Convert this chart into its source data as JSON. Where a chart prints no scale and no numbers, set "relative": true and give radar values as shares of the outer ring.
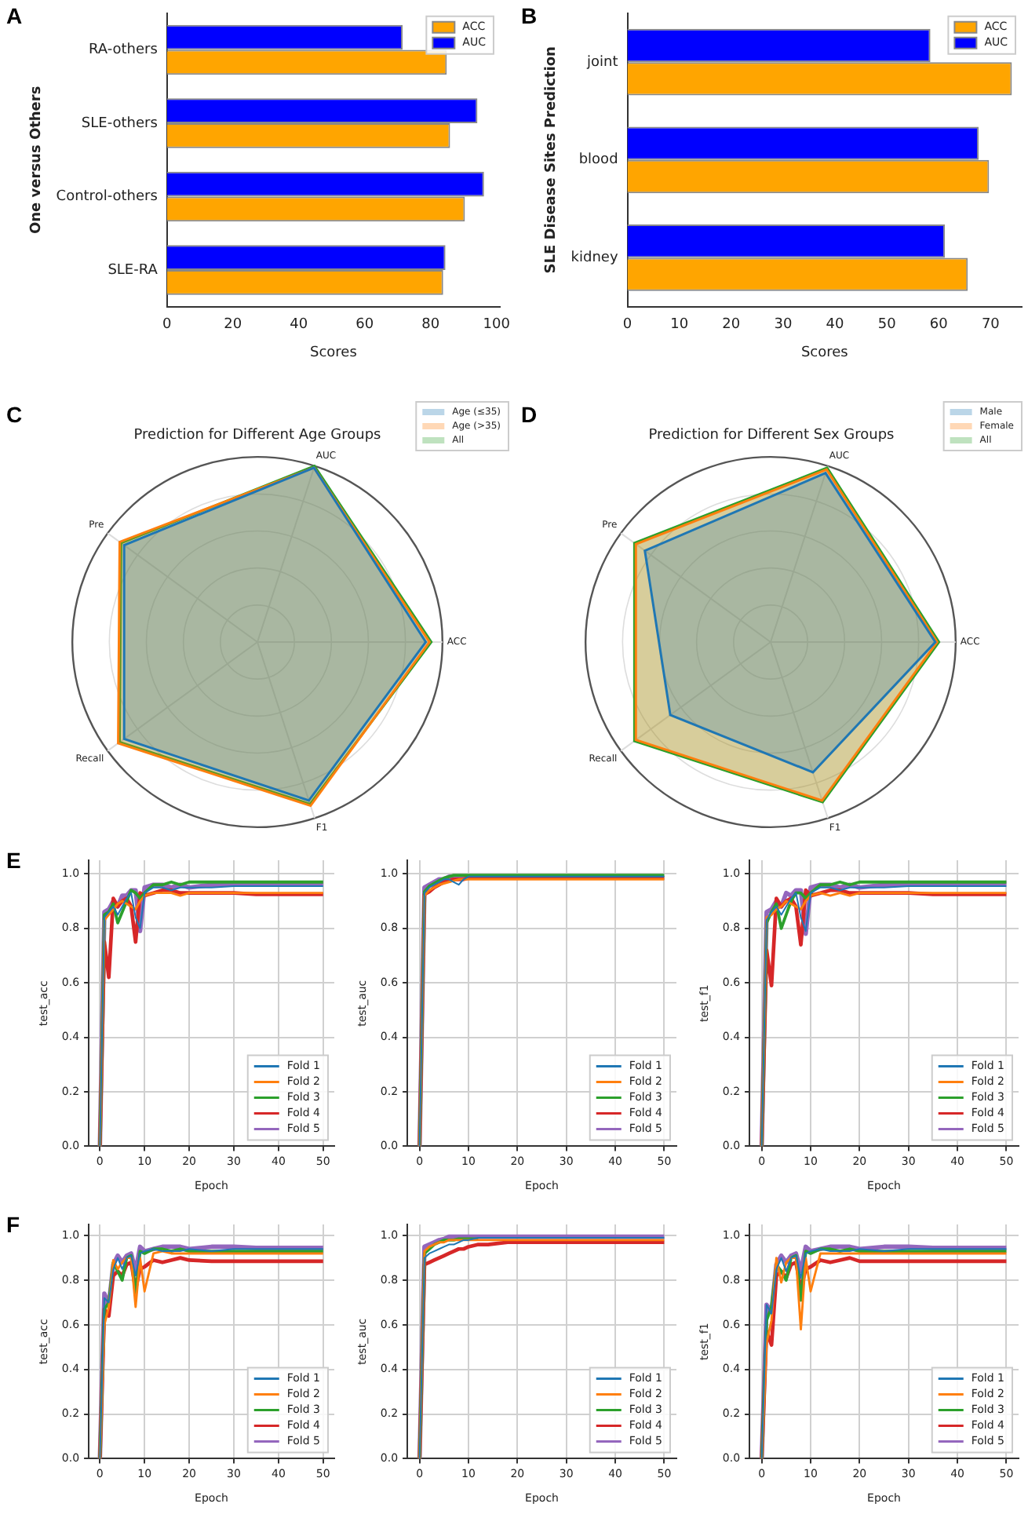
{
  "chart_data": [
    {
      "type": "bar",
      "orientation": "horizontal",
      "ylabel": "One versus Others",
      "xlabel": "Scores",
      "categories": [
        "RA-others",
        "SLE-others",
        "Control-others",
        "SLE-RA"
      ],
      "xlim": [
        0,
        101
      ],
      "xticks": [
        0,
        20,
        40,
        60,
        80,
        100
      ],
      "legend": "top right",
      "annotations": [
        "A"
      ],
      "series": [
        {
          "name": "ACC",
          "color": "#ffa500",
          "values": [
            84.9,
            85.9,
            90.4,
            83.8
          ]
        },
        {
          "name": "AUC",
          "color": "#0000ff",
          "values": [
            71.5,
            94.2,
            96.2,
            84.5
          ]
        }
      ]
    },
    {
      "type": "bar",
      "orientation": "horizontal",
      "ylabel": "SLE Disease Sites Prediction",
      "xlabel": "Scores",
      "categories": [
        "joint",
        "blood",
        "kidney"
      ],
      "xlim": [
        0,
        76
      ],
      "xticks": [
        0,
        10,
        20,
        30,
        40,
        50,
        60,
        70
      ],
      "legend": "top right",
      "annotations": [
        "B"
      ],
      "series": [
        {
          "name": "ACC",
          "color": "#ffa500",
          "values": [
            74.1,
            69.7,
            65.6
          ]
        },
        {
          "name": "AUC",
          "color": "#0000ff",
          "values": [
            58.4,
            67.7,
            61.2
          ]
        }
      ]
    },
    {
      "type": "radar",
      "title": "Prediction for Different Age Groups",
      "relative": true,
      "categories": [
        "AUC",
        "ACC",
        "F1",
        "Recall",
        "Pre"
      ],
      "grid": true,
      "legend": "top right",
      "annotations": [
        "C"
      ],
      "series": [
        {
          "name": "Age (≤35)",
          "color": "#1f77b4",
          "values": [
            0.99,
            0.91,
            0.9,
            0.89,
            0.89
          ]
        },
        {
          "name": "Age (>35)",
          "color": "#ff7f0e",
          "values": [
            0.99,
            0.93,
            0.93,
            0.93,
            0.92
          ]
        },
        {
          "name": "All",
          "color": "#2ca02c",
          "values": [
            1.0,
            0.94,
            0.92,
            0.92,
            0.91
          ]
        }
      ]
    },
    {
      "type": "radar",
      "title": "Prediction for Different Sex Groups",
      "relative": true,
      "categories": [
        "AUC",
        "ACC",
        "F1",
        "Recall",
        "Pre"
      ],
      "grid": true,
      "legend": "top right",
      "annotations": [
        "D"
      ],
      "series": [
        {
          "name": "Male",
          "color": "#1f77b4",
          "values": [
            0.96,
            0.89,
            0.74,
            0.67,
            0.84
          ]
        },
        {
          "name": "Female",
          "color": "#ff7f0e",
          "values": [
            0.98,
            0.9,
            0.9,
            0.9,
            0.9
          ]
        },
        {
          "name": "All",
          "color": "#2ca02c",
          "values": [
            0.99,
            0.91,
            0.91,
            0.91,
            0.91
          ]
        }
      ]
    },
    {
      "type": "line",
      "xlabel": "Epoch",
      "ylabel": "test_acc",
      "x": [
        0,
        1,
        2,
        3,
        4,
        5,
        6,
        7,
        8,
        9,
        10,
        12,
        14,
        16,
        18,
        20,
        25,
        30,
        35,
        40,
        50
      ],
      "xlim": [
        -2.5,
        52.5
      ],
      "xticks": [
        0,
        10,
        20,
        30,
        40,
        50
      ],
      "ylim": [
        0,
        1.05
      ],
      "yticks": [
        {
          "value": 0,
          "label": "0.0"
        },
        {
          "value": 0.2,
          "label": "0.2"
        },
        {
          "value": 0.4,
          "label": "0.4"
        },
        {
          "value": 0.6,
          "label": "0.6"
        },
        {
          "value": 0.8,
          "label": "0.8"
        },
        {
          "value": 1,
          "label": "1.0"
        }
      ],
      "grid": true,
      "legend": "bottom right",
      "annotations": [
        "E"
      ],
      "series": [
        {
          "name": "Fold 1",
          "color": "#1f77b4",
          "values": [
            0,
            0.84,
            0.86,
            0.88,
            0.85,
            0.88,
            0.91,
            0.93,
            0.84,
            0.8,
            0.93,
            0.95,
            0.95,
            0.94,
            0.95,
            0.95,
            0.95,
            0.955,
            0.955,
            0.955,
            0.955
          ]
        },
        {
          "name": "Fold 2",
          "color": "#ff7f0e",
          "values": [
            0,
            0.83,
            0.85,
            0.87,
            0.89,
            0.9,
            0.89,
            0.88,
            0.87,
            0.9,
            0.92,
            0.93,
            0.93,
            0.93,
            0.92,
            0.93,
            0.93,
            0.93,
            0.93,
            0.93,
            0.93
          ]
        },
        {
          "name": "Fold 3",
          "color": "#2ca02c",
          "values": [
            0,
            0.85,
            0.86,
            0.89,
            0.82,
            0.86,
            0.9,
            0.94,
            0.93,
            0.91,
            0.93,
            0.96,
            0.96,
            0.97,
            0.96,
            0.97,
            0.97,
            0.97,
            0.97,
            0.97,
            0.97
          ]
        },
        {
          "name": "Fold 4",
          "color": "#d62728",
          "values": [
            0,
            0.75,
            0.62,
            0.91,
            0.88,
            0.9,
            0.91,
            0.88,
            0.75,
            0.93,
            0.92,
            0.93,
            0.94,
            0.94,
            0.93,
            0.93,
            0.93,
            0.93,
            0.925,
            0.925,
            0.925
          ]
        },
        {
          "name": "Fold 5",
          "color": "#9467bd",
          "values": [
            0,
            0.86,
            0.87,
            0.9,
            0.88,
            0.92,
            0.92,
            0.94,
            0.94,
            0.79,
            0.95,
            0.96,
            0.96,
            0.95,
            0.96,
            0.95,
            0.96,
            0.96,
            0.965,
            0.965,
            0.965
          ]
        }
      ]
    },
    {
      "type": "line",
      "xlabel": "Epoch",
      "ylabel": "test_auc",
      "x": [
        0,
        1,
        2,
        3,
        4,
        5,
        6,
        7,
        8,
        9,
        10,
        12,
        14,
        16,
        18,
        20,
        25,
        30,
        35,
        40,
        50
      ],
      "xlim": [
        -2.5,
        52.5
      ],
      "xticks": [
        0,
        10,
        20,
        30,
        40,
        50
      ],
      "ylim": [
        0,
        1.05
      ],
      "yticks": [
        {
          "value": 0,
          "label": "0.0"
        },
        {
          "value": 0.2,
          "label": "0.2"
        },
        {
          "value": 0.4,
          "label": "0.4"
        },
        {
          "value": 0.6,
          "label": "0.6"
        },
        {
          "value": 0.8,
          "label": "0.8"
        },
        {
          "value": 1,
          "label": "1.0"
        }
      ],
      "grid": true,
      "legend": "bottom right",
      "series": [
        {
          "name": "Fold 1",
          "color": "#1f77b4",
          "values": [
            0,
            0.93,
            0.95,
            0.96,
            0.97,
            0.98,
            0.98,
            0.97,
            0.96,
            0.98,
            0.99,
            0.99,
            0.99,
            0.99,
            0.99,
            0.99,
            0.99,
            0.99,
            0.99,
            0.99,
            0.99
          ]
        },
        {
          "name": "Fold 2",
          "color": "#ff7f0e",
          "values": [
            0,
            0.92,
            0.94,
            0.95,
            0.96,
            0.965,
            0.97,
            0.975,
            0.98,
            0.98,
            0.98,
            0.98,
            0.98,
            0.98,
            0.98,
            0.98,
            0.98,
            0.98,
            0.98,
            0.98,
            0.98
          ]
        },
        {
          "name": "Fold 3",
          "color": "#2ca02c",
          "values": [
            0,
            0.935,
            0.955,
            0.965,
            0.975,
            0.985,
            0.99,
            0.995,
            0.995,
            0.995,
            0.995,
            0.995,
            0.995,
            0.995,
            0.995,
            0.995,
            0.995,
            0.995,
            0.995,
            0.995,
            0.995
          ]
        },
        {
          "name": "Fold 4",
          "color": "#d62728",
          "values": [
            0,
            0.925,
            0.935,
            0.95,
            0.96,
            0.97,
            0.975,
            0.98,
            0.98,
            0.98,
            0.985,
            0.985,
            0.985,
            0.985,
            0.985,
            0.985,
            0.985,
            0.985,
            0.985,
            0.985,
            0.985
          ]
        },
        {
          "name": "Fold 5",
          "color": "#9467bd",
          "values": [
            0,
            0.95,
            0.96,
            0.97,
            0.98,
            0.98,
            0.99,
            0.99,
            0.99,
            0.99,
            0.99,
            0.99,
            null,
            null,
            null,
            null,
            null,
            null,
            null,
            null,
            null
          ]
        }
      ]
    },
    {
      "type": "line",
      "xlabel": "Epoch",
      "ylabel": "test_f1",
      "x": [
        0,
        1,
        2,
        3,
        4,
        5,
        6,
        7,
        8,
        9,
        10,
        12,
        14,
        16,
        18,
        20,
        25,
        30,
        35,
        40,
        50
      ],
      "xlim": [
        -2.5,
        52.5
      ],
      "xticks": [
        0,
        10,
        20,
        30,
        40,
        50
      ],
      "ylim": [
        0,
        1.05
      ],
      "yticks": [
        {
          "value": 0,
          "label": "0.0"
        },
        {
          "value": 0.2,
          "label": "0.2"
        },
        {
          "value": 0.4,
          "label": "0.4"
        },
        {
          "value": 0.6,
          "label": "0.6"
        },
        {
          "value": 0.8,
          "label": "0.8"
        },
        {
          "value": 1,
          "label": "1.0"
        }
      ],
      "grid": true,
      "legend": "bottom right",
      "series": [
        {
          "name": "Fold 1",
          "color": "#1f77b4",
          "values": [
            0,
            0.83,
            0.86,
            0.88,
            0.85,
            0.88,
            0.91,
            0.93,
            0.84,
            0.79,
            0.93,
            0.95,
            0.95,
            0.94,
            0.95,
            0.95,
            0.95,
            0.955,
            0.955,
            0.955,
            0.955
          ]
        },
        {
          "name": "Fold 2",
          "color": "#ff7f0e",
          "values": [
            0,
            0.84,
            0.85,
            0.87,
            0.88,
            0.9,
            0.89,
            0.88,
            0.87,
            0.9,
            0.92,
            0.93,
            0.92,
            0.93,
            0.92,
            0.93,
            0.93,
            0.93,
            0.93,
            0.93,
            0.93
          ]
        },
        {
          "name": "Fold 3",
          "color": "#2ca02c",
          "values": [
            0,
            0.82,
            0.86,
            0.89,
            0.8,
            0.85,
            0.9,
            0.93,
            0.93,
            0.91,
            0.93,
            0.96,
            0.96,
            0.97,
            0.96,
            0.97,
            0.97,
            0.97,
            0.97,
            0.97,
            0.97
          ]
        },
        {
          "name": "Fold 4",
          "color": "#d62728",
          "values": [
            0,
            0.72,
            0.59,
            0.91,
            0.88,
            0.9,
            0.91,
            0.88,
            0.74,
            0.94,
            0.92,
            0.93,
            0.94,
            0.94,
            0.93,
            0.93,
            0.93,
            0.93,
            0.925,
            0.925,
            0.925
          ]
        },
        {
          "name": "Fold 5",
          "color": "#9467bd",
          "values": [
            0,
            0.86,
            0.87,
            0.9,
            0.88,
            0.93,
            0.92,
            0.94,
            0.94,
            0.78,
            0.95,
            0.96,
            0.96,
            0.95,
            0.96,
            0.95,
            0.96,
            0.96,
            0.965,
            0.965,
            0.965
          ]
        }
      ]
    },
    {
      "type": "line",
      "xlabel": "Epoch",
      "ylabel": "test_acc",
      "x": [
        0,
        1,
        2,
        3,
        4,
        5,
        6,
        7,
        8,
        9,
        10,
        12,
        14,
        16,
        18,
        20,
        25,
        30,
        35,
        40,
        50
      ],
      "xlim": [
        -2.5,
        52.5
      ],
      "xticks": [
        0,
        10,
        20,
        30,
        40,
        50
      ],
      "ylim": [
        0,
        1.05
      ],
      "yticks": [
        {
          "value": 0,
          "label": "0.0"
        },
        {
          "value": 0.2,
          "label": "0.2"
        },
        {
          "value": 0.4,
          "label": "0.4"
        },
        {
          "value": 0.6,
          "label": "0.6"
        },
        {
          "value": 0.8,
          "label": "0.8"
        },
        {
          "value": 1,
          "label": "1.0"
        }
      ],
      "grid": true,
      "legend": "bottom right",
      "annotations": [
        "F"
      ],
      "series": [
        {
          "name": "Fold 1",
          "color": "#1f77b4",
          "values": [
            0,
            0.72,
            0.7,
            0.85,
            0.9,
            0.85,
            0.9,
            0.91,
            0.82,
            0.92,
            0.93,
            0.94,
            0.93,
            0.93,
            0.93,
            0.94,
            0.93,
            0.94,
            0.94,
            0.94,
            0.94
          ]
        },
        {
          "name": "Fold 2",
          "color": "#ff7f0e",
          "values": [
            0,
            0.6,
            0.68,
            0.89,
            0.85,
            0.88,
            0.9,
            0.9,
            0.68,
            0.9,
            0.75,
            0.92,
            0.93,
            0.92,
            0.92,
            0.92,
            0.92,
            0.92,
            0.92,
            0.92,
            0.92
          ]
        },
        {
          "name": "Fold 3",
          "color": "#2ca02c",
          "values": [
            0,
            0.67,
            0.7,
            0.88,
            0.84,
            0.8,
            0.9,
            0.91,
            0.73,
            0.93,
            0.92,
            0.94,
            0.94,
            0.93,
            0.94,
            0.93,
            0.93,
            0.93,
            0.93,
            0.93,
            0.93
          ]
        },
        {
          "name": "Fold 4",
          "color": "#d62728",
          "values": [
            0,
            0.67,
            0.64,
            0.82,
            0.84,
            0.82,
            0.87,
            0.88,
            0.76,
            0.85,
            0.86,
            0.89,
            0.88,
            0.89,
            0.9,
            0.89,
            0.885,
            0.885,
            0.885,
            0.885,
            0.885
          ]
        },
        {
          "name": "Fold 5",
          "color": "#9467bd",
          "values": [
            0,
            0.74,
            0.69,
            0.87,
            0.91,
            0.88,
            0.91,
            0.92,
            0.84,
            0.95,
            0.93,
            0.94,
            0.95,
            0.95,
            0.95,
            0.94,
            0.95,
            0.95,
            0.945,
            0.945,
            0.945
          ]
        }
      ]
    },
    {
      "type": "line",
      "xlabel": "Epoch",
      "ylabel": "test_auc",
      "x": [
        0,
        1,
        2,
        3,
        4,
        5,
        6,
        7,
        8,
        9,
        10,
        12,
        14,
        16,
        18,
        20,
        25,
        30,
        35,
        40,
        50
      ],
      "xlim": [
        -2.5,
        52.5
      ],
      "xticks": [
        0,
        10,
        20,
        30,
        40,
        50
      ],
      "ylim": [
        0,
        1.05
      ],
      "yticks": [
        {
          "value": 0,
          "label": "0.0"
        },
        {
          "value": 0.2,
          "label": "0.2"
        },
        {
          "value": 0.4,
          "label": "0.4"
        },
        {
          "value": 0.6,
          "label": "0.6"
        },
        {
          "value": 0.8,
          "label": "0.8"
        },
        {
          "value": 1,
          "label": "1.0"
        }
      ],
      "grid": true,
      "legend": "bottom right",
      "series": [
        {
          "name": "Fold 1",
          "color": "#1f77b4",
          "values": [
            0,
            0.9,
            0.92,
            0.93,
            0.94,
            0.95,
            0.96,
            0.96,
            0.97,
            0.98,
            0.98,
            0.99,
            0.99,
            0.99,
            0.99,
            0.99,
            0.99,
            0.99,
            0.99,
            0.99,
            0.99
          ]
        },
        {
          "name": "Fold 2",
          "color": "#ff7f0e",
          "values": [
            0,
            0.93,
            0.95,
            0.96,
            0.97,
            0.97,
            0.98,
            0.98,
            0.98,
            0.98,
            0.98,
            0.98,
            0.98,
            0.98,
            0.98,
            0.98,
            0.98,
            0.98,
            0.98,
            0.98,
            0.98
          ]
        },
        {
          "name": "Fold 3",
          "color": "#2ca02c",
          "values": [
            0,
            0.92,
            0.94,
            0.96,
            0.97,
            0.98,
            0.98,
            0.98,
            0.985,
            0.985,
            0.985,
            0.985,
            null,
            null,
            null,
            null,
            null,
            null,
            null,
            null,
            null
          ]
        },
        {
          "name": "Fold 4",
          "color": "#d62728",
          "values": [
            0,
            0.87,
            0.88,
            0.89,
            0.9,
            0.91,
            0.92,
            0.93,
            0.94,
            0.94,
            0.95,
            0.96,
            0.96,
            0.965,
            0.97,
            0.97,
            0.97,
            0.97,
            0.97,
            0.97,
            0.97
          ]
        },
        {
          "name": "Fold 5",
          "color": "#9467bd",
          "values": [
            0,
            0.95,
            0.96,
            0.97,
            0.98,
            0.985,
            0.995,
            0.995,
            0.995,
            0.995,
            0.995,
            0.995,
            0.995,
            0.995,
            0.995,
            0.995,
            0.995,
            0.995,
            0.995,
            0.995,
            0.995
          ]
        }
      ]
    },
    {
      "type": "line",
      "xlabel": "Epoch",
      "ylabel": "test_f1",
      "x": [
        0,
        1,
        2,
        3,
        4,
        5,
        6,
        7,
        8,
        9,
        10,
        12,
        14,
        16,
        18,
        20,
        25,
        30,
        35,
        40,
        50
      ],
      "xlim": [
        -2.5,
        52.5
      ],
      "xticks": [
        0,
        10,
        20,
        30,
        40,
        50
      ],
      "ylim": [
        0,
        1.05
      ],
      "yticks": [
        {
          "value": 0,
          "label": "0.0"
        },
        {
          "value": 0.2,
          "label": "0.2"
        },
        {
          "value": 0.4,
          "label": "0.4"
        },
        {
          "value": 0.6,
          "label": "0.6"
        },
        {
          "value": 0.8,
          "label": "0.8"
        },
        {
          "value": 1,
          "label": "1.0"
        }
      ],
      "grid": true,
      "legend": "bottom right",
      "series": [
        {
          "name": "Fold 1",
          "color": "#1f77b4",
          "values": [
            0,
            0.69,
            0.65,
            0.85,
            0.9,
            0.84,
            0.9,
            0.91,
            0.81,
            0.92,
            0.93,
            0.94,
            0.93,
            0.93,
            0.93,
            0.94,
            0.93,
            0.94,
            0.94,
            0.94,
            0.94
          ]
        },
        {
          "name": "Fold 2",
          "color": "#ff7f0e",
          "values": [
            0,
            0.52,
            0.62,
            0.9,
            0.79,
            0.88,
            0.9,
            0.9,
            0.58,
            0.9,
            0.75,
            0.92,
            0.92,
            0.92,
            0.92,
            0.92,
            0.92,
            0.92,
            0.92,
            0.92,
            0.92
          ]
        },
        {
          "name": "Fold 3",
          "color": "#2ca02c",
          "values": [
            0,
            0.62,
            0.68,
            0.87,
            0.84,
            0.8,
            0.9,
            0.91,
            0.71,
            0.93,
            0.92,
            0.94,
            0.94,
            0.93,
            0.94,
            0.93,
            0.93,
            0.93,
            0.93,
            0.93,
            0.93
          ]
        },
        {
          "name": "Fold 4",
          "color": "#d62728",
          "values": [
            0,
            0.57,
            0.51,
            0.82,
            0.84,
            0.81,
            0.87,
            0.88,
            0.76,
            0.85,
            0.86,
            0.89,
            0.88,
            0.89,
            0.9,
            0.885,
            0.885,
            0.885,
            0.885,
            0.885,
            0.885
          ]
        },
        {
          "name": "Fold 5",
          "color": "#9467bd",
          "values": [
            0,
            0.69,
            0.66,
            0.87,
            0.91,
            0.88,
            0.91,
            0.92,
            0.84,
            0.95,
            0.93,
            0.94,
            0.95,
            0.95,
            0.95,
            0.94,
            0.95,
            0.95,
            0.945,
            0.945,
            0.945
          ]
        }
      ]
    }
  ]
}
